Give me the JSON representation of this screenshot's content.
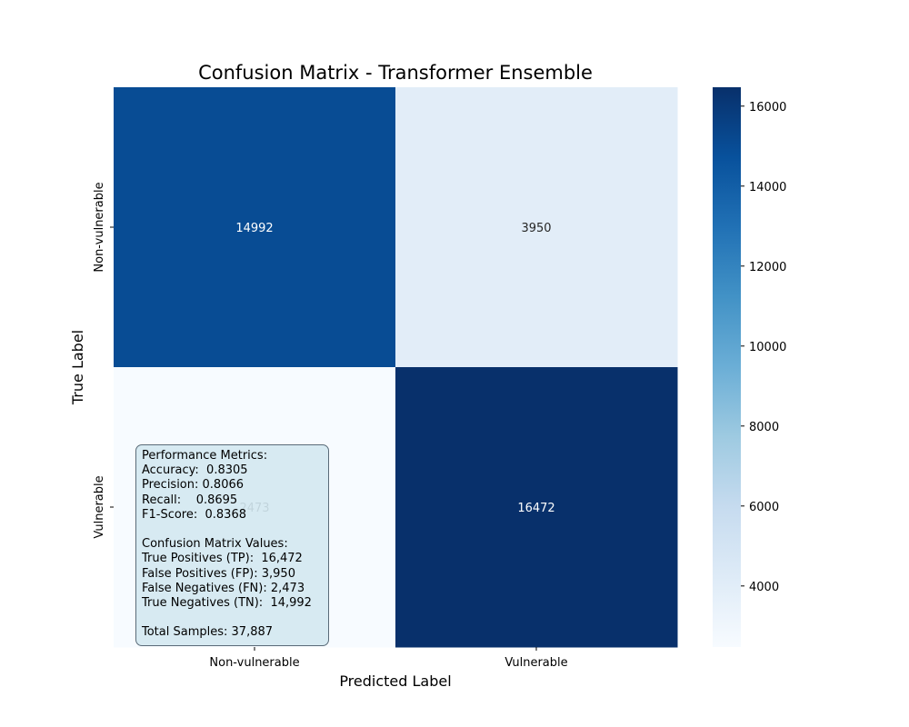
{
  "chart_data": {
    "type": "heatmap",
    "title": "Confusion Matrix - Transformer Ensemble",
    "xlabel": "Predicted Label",
    "ylabel": "True Label",
    "x_categories": [
      "Non-vulnerable",
      "Vulnerable"
    ],
    "y_categories": [
      "Non-vulnerable",
      "Vulnerable"
    ],
    "values": [
      [
        14992,
        3950
      ],
      [
        2473,
        16472
      ]
    ],
    "colormap": "Blues",
    "colorbar": {
      "range": [
        2473,
        16472
      ],
      "ticks": [
        4000,
        6000,
        8000,
        10000,
        12000,
        14000,
        16000
      ]
    }
  },
  "metrics_box": {
    "lines": [
      "Performance Metrics:",
      "Accuracy:  0.8305",
      "Precision: 0.8066",
      "Recall:    0.8695",
      "F1-Score:  0.8368",
      "",
      "Confusion Matrix Values:",
      "True Positives (TP):  16,472",
      "False Positives (FP): 3,950",
      "False Negatives (FN): 2,473",
      "True Negatives (TN):  14,992",
      "",
      "Total Samples: 37,887"
    ]
  }
}
